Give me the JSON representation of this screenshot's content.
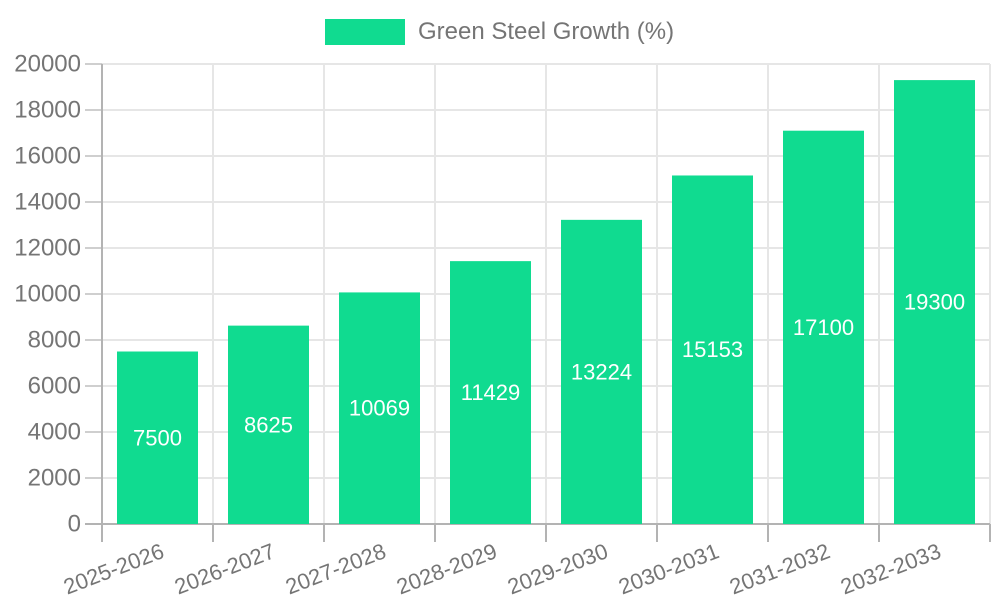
{
  "chart_data": {
    "type": "bar",
    "title": "",
    "legend": {
      "position": "top",
      "label": "Green Steel Growth (%)"
    },
    "categories": [
      "2025-2026",
      "2026-2027",
      "2027-2028",
      "2028-2029",
      "2029-2030",
      "2030-2031",
      "2031-2032",
      "2032-2033"
    ],
    "series": [
      {
        "name": "Green Steel Growth (%)",
        "values": [
          7500,
          8625,
          10069,
          11429,
          13224,
          15153,
          17100,
          19300
        ]
      }
    ],
    "xlabel": "",
    "ylabel": "",
    "ylim": [
      0,
      20000
    ],
    "ytick_step": 2000,
    "ytick_labels": [
      "0",
      "2000",
      "4000",
      "6000",
      "8000",
      "10000",
      "12000",
      "14000",
      "16000",
      "18000",
      "20000"
    ],
    "grid": true,
    "bar_value_labels_visible": true,
    "x_label_rotation_deg": -21
  },
  "colors": {
    "bar": "#10DB90",
    "bar_label": "#FFFFFF",
    "axis_text": "#757575",
    "gridline": "#E6E6E6",
    "tick_dash": "#CFCFCF",
    "axis_line": "#B3B3B3",
    "background": "#FFFFFF"
  }
}
